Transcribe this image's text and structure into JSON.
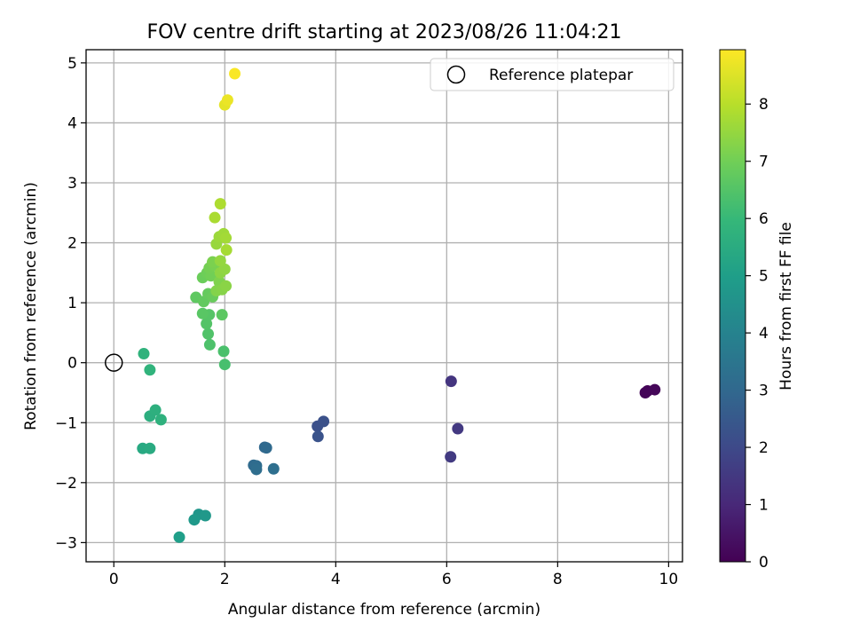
{
  "chart_data": {
    "type": "scatter",
    "title": "FOV centre drift starting at 2023/08/26 11:04:21",
    "xlabel": "Angular distance from reference (arcmin)",
    "ylabel": "Rotation from reference (arcmin)",
    "xlim": [
      -0.5,
      10.25
    ],
    "ylim": [
      -3.32,
      5.22
    ],
    "xticks": [
      0,
      2,
      4,
      6,
      8,
      10
    ],
    "yticks": [
      -3,
      -2,
      -1,
      0,
      1,
      2,
      3,
      4,
      5
    ],
    "grid": true,
    "legend": {
      "placement": "top-right",
      "entries": [
        {
          "label": "Reference platepar",
          "marker": "open-circle"
        }
      ]
    },
    "reference_point": {
      "x": 0,
      "y": 0
    },
    "colorbar": {
      "label": "Hours from first FF file",
      "colormap": "viridis",
      "range": [
        0,
        8.95
      ],
      "ticks": [
        0,
        1,
        2,
        3,
        4,
        5,
        6,
        7,
        8
      ]
    },
    "points": [
      {
        "x": 9.62,
        "y": -0.47,
        "hours": 0.05
      },
      {
        "x": 9.58,
        "y": -0.5,
        "hours": 0.1
      },
      {
        "x": 9.75,
        "y": -0.45,
        "hours": 0.15
      },
      {
        "x": 6.08,
        "y": -0.31,
        "hours": 1.4
      },
      {
        "x": 6.2,
        "y": -1.1,
        "hours": 1.5
      },
      {
        "x": 6.07,
        "y": -1.57,
        "hours": 1.55
      },
      {
        "x": 3.67,
        "y": -1.06,
        "hours": 2.2
      },
      {
        "x": 3.78,
        "y": -0.98,
        "hours": 2.25
      },
      {
        "x": 3.68,
        "y": -1.23,
        "hours": 2.3
      },
      {
        "x": 2.72,
        "y": -1.41,
        "hours": 3.0
      },
      {
        "x": 2.75,
        "y": -1.42,
        "hours": 3.05
      },
      {
        "x": 2.52,
        "y": -1.71,
        "hours": 3.1
      },
      {
        "x": 2.57,
        "y": -1.72,
        "hours": 3.15
      },
      {
        "x": 2.57,
        "y": -1.78,
        "hours": 3.2
      },
      {
        "x": 2.88,
        "y": -1.77,
        "hours": 3.25
      },
      {
        "x": 1.53,
        "y": -2.53,
        "hours": 4.7
      },
      {
        "x": 1.65,
        "y": -2.55,
        "hours": 4.75
      },
      {
        "x": 1.45,
        "y": -2.62,
        "hours": 4.8
      },
      {
        "x": 1.18,
        "y": -2.91,
        "hours": 5.0
      },
      {
        "x": 0.52,
        "y": -1.43,
        "hours": 5.4
      },
      {
        "x": 0.65,
        "y": -1.43,
        "hours": 5.45
      },
      {
        "x": 0.65,
        "y": -0.89,
        "hours": 5.6
      },
      {
        "x": 0.75,
        "y": -0.79,
        "hours": 5.65
      },
      {
        "x": 0.85,
        "y": -0.95,
        "hours": 5.7
      },
      {
        "x": 0.54,
        "y": 0.15,
        "hours": 5.75
      },
      {
        "x": 0.65,
        "y": -0.12,
        "hours": 5.8
      },
      {
        "x": 2.0,
        "y": -0.03,
        "hours": 6.3
      },
      {
        "x": 1.98,
        "y": 0.19,
        "hours": 6.35
      },
      {
        "x": 1.73,
        "y": 0.3,
        "hours": 6.4
      },
      {
        "x": 1.7,
        "y": 0.48,
        "hours": 6.45
      },
      {
        "x": 1.67,
        "y": 0.65,
        "hours": 6.5
      },
      {
        "x": 1.72,
        "y": 0.8,
        "hours": 6.55
      },
      {
        "x": 1.6,
        "y": 0.82,
        "hours": 6.6
      },
      {
        "x": 1.95,
        "y": 0.8,
        "hours": 6.65
      },
      {
        "x": 1.48,
        "y": 1.09,
        "hours": 6.7
      },
      {
        "x": 1.62,
        "y": 1.02,
        "hours": 6.75
      },
      {
        "x": 1.7,
        "y": 1.15,
        "hours": 6.8
      },
      {
        "x": 1.78,
        "y": 1.1,
        "hours": 6.85
      },
      {
        "x": 1.6,
        "y": 1.42,
        "hours": 6.9
      },
      {
        "x": 1.68,
        "y": 1.5,
        "hours": 6.95
      },
      {
        "x": 1.75,
        "y": 1.45,
        "hours": 7.0
      },
      {
        "x": 1.72,
        "y": 1.58,
        "hours": 7.05
      },
      {
        "x": 1.82,
        "y": 1.62,
        "hours": 7.1
      },
      {
        "x": 1.78,
        "y": 1.68,
        "hours": 7.15
      },
      {
        "x": 1.9,
        "y": 1.35,
        "hours": 7.2
      },
      {
        "x": 1.85,
        "y": 1.2,
        "hours": 7.25
      },
      {
        "x": 1.95,
        "y": 1.22,
        "hours": 7.3
      },
      {
        "x": 2.02,
        "y": 1.28,
        "hours": 7.35
      },
      {
        "x": 1.92,
        "y": 1.5,
        "hours": 7.4
      },
      {
        "x": 2.0,
        "y": 1.56,
        "hours": 7.45
      },
      {
        "x": 1.92,
        "y": 1.7,
        "hours": 7.5
      },
      {
        "x": 1.85,
        "y": 1.98,
        "hours": 7.55
      },
      {
        "x": 1.9,
        "y": 2.1,
        "hours": 7.6
      },
      {
        "x": 1.98,
        "y": 2.15,
        "hours": 7.65
      },
      {
        "x": 2.02,
        "y": 2.08,
        "hours": 7.7
      },
      {
        "x": 2.03,
        "y": 1.88,
        "hours": 7.75
      },
      {
        "x": 1.82,
        "y": 2.42,
        "hours": 7.8
      },
      {
        "x": 1.92,
        "y": 2.65,
        "hours": 7.85
      },
      {
        "x": 2.0,
        "y": 4.3,
        "hours": 8.6
      },
      {
        "x": 2.05,
        "y": 4.38,
        "hours": 8.7
      },
      {
        "x": 2.18,
        "y": 4.82,
        "hours": 8.9
      }
    ]
  }
}
